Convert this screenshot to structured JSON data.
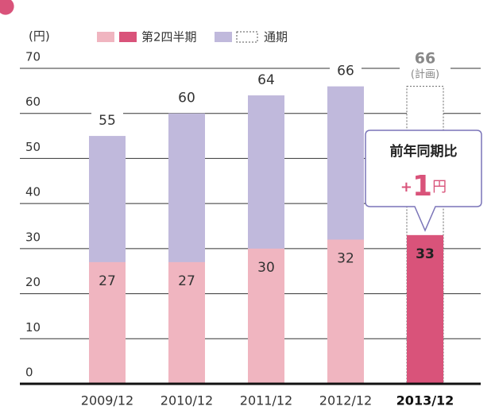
{
  "chart_data": {
    "type": "bar",
    "unit_label": "(円)",
    "categories": [
      "2009/12",
      "2010/12",
      "2011/12",
      "2012/12",
      "2013/12"
    ],
    "series": [
      {
        "name": "通期",
        "colors": [
          "#c0b9dc",
          "#c0b9dc",
          "#c0b9dc",
          "#c0b9dc",
          "#ffffff"
        ],
        "dashed": [
          false,
          false,
          false,
          false,
          true
        ],
        "values": [
          55,
          60,
          64,
          66,
          66
        ]
      },
      {
        "name": "第2四半期",
        "colors": [
          "#f0b5c0",
          "#f0b5c0",
          "#f0b5c0",
          "#f0b5c0",
          "#d9537a"
        ],
        "values": [
          27,
          27,
          30,
          32,
          33
        ]
      }
    ],
    "plan_note": "(計画)",
    "callout": {
      "title": "前年同期比",
      "prefix": "+",
      "value": 1,
      "unit": "円"
    },
    "ylim": [
      0,
      70
    ],
    "yticks": [
      0,
      10,
      20,
      30,
      40,
      50,
      60,
      70
    ],
    "grid": true
  }
}
